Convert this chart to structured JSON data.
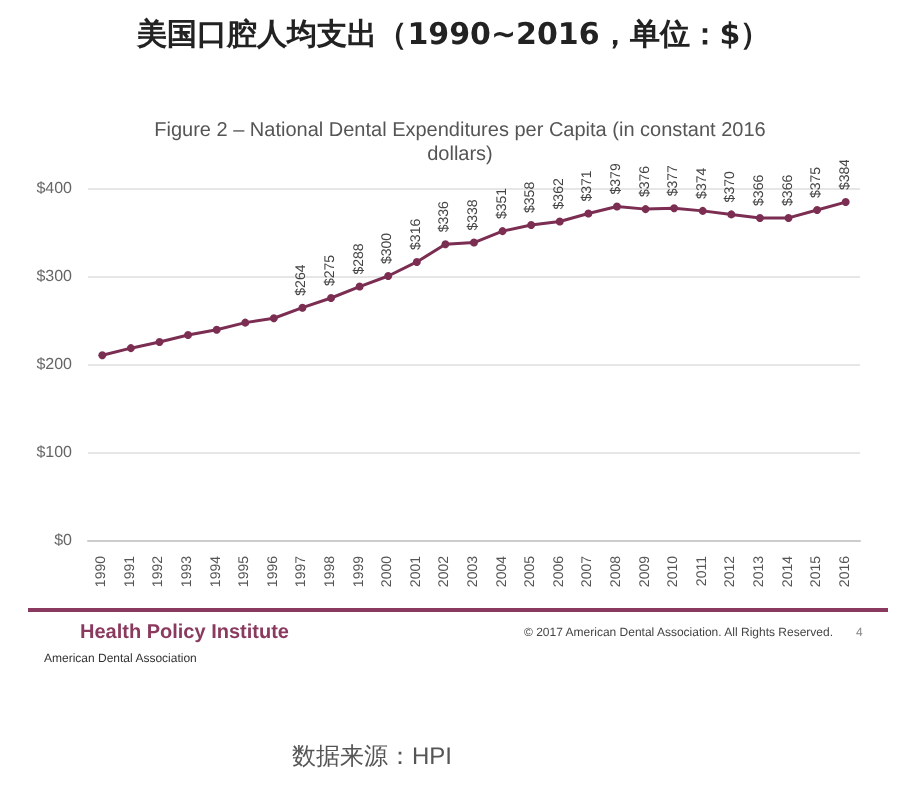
{
  "chart_data": {
    "type": "line",
    "title": "美国口腔人均支出（1990~2016，单位：$）",
    "subtitle": "Figure 2 – National Dental Expenditures per Capita (in constant 2016 dollars)",
    "categories": [
      "1990",
      "1991",
      "1992",
      "1993",
      "1994",
      "1995",
      "1996",
      "1997",
      "1998",
      "1999",
      "2000",
      "2001",
      "2002",
      "2003",
      "2004",
      "2005",
      "2006",
      "2007",
      "2008",
      "2009",
      "2010",
      "2011",
      "2012",
      "2013",
      "2014",
      "2015",
      "2016"
    ],
    "series": [
      {
        "color": "#7b2d52",
        "values": [
          210,
          218,
          225,
          233,
          239,
          247,
          252,
          264,
          275,
          288,
          300,
          316,
          336,
          338,
          351,
          358,
          362,
          371,
          379,
          376,
          377,
          374,
          370,
          366,
          366,
          375,
          384
        ],
        "value_labels": [
          null,
          null,
          null,
          null,
          null,
          null,
          null,
          "$264",
          "$275",
          "$288",
          "$300",
          "$316",
          "$336",
          "$338",
          "$351",
          "$358",
          "$362",
          "$371",
          "$379",
          "$376",
          "$377",
          "$374",
          "$370",
          "$366",
          "$366",
          "$375",
          "$384"
        ]
      }
    ],
    "ylim": [
      0,
      400
    ],
    "yticks": [
      {
        "value": 0,
        "label": "$0"
      },
      {
        "value": 100,
        "label": "$100"
      },
      {
        "value": 200,
        "label": "$200"
      },
      {
        "value": 300,
        "label": "$300"
      },
      {
        "value": 400,
        "label": "$400"
      }
    ],
    "grid": "y",
    "marker": "circle",
    "line_style": "solid",
    "annotations": [
      "Health Policy Institute",
      "American Dental Association",
      "© 2017 American Dental Association. All Rights Reserved.",
      "4",
      "数据来源：HPI"
    ]
  }
}
